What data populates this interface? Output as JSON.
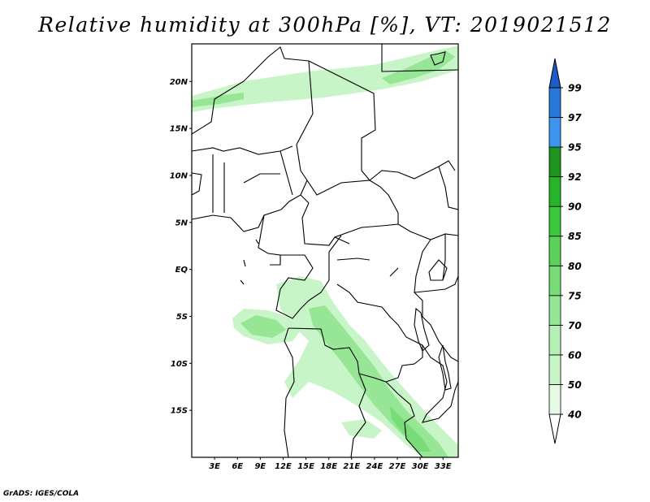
{
  "title": "Relative humidity at 300hPa [%], VT: 2019021512",
  "footer": "GrADS: IGES/COLA",
  "map": {
    "lon_range": [
      0,
      35
    ],
    "lat_range": [
      -20,
      24
    ],
    "lat_ticks": [
      "20N",
      "15N",
      "10N",
      "5N",
      "EQ",
      "5S",
      "10S",
      "15S"
    ],
    "lat_values": [
      20,
      15,
      10,
      5,
      0,
      -5,
      -10,
      -15
    ],
    "lon_ticks": [
      "3E",
      "6E",
      "9E",
      "12E",
      "15E",
      "18E",
      "21E",
      "24E",
      "27E",
      "30E",
      "33E"
    ],
    "lon_values": [
      3,
      6,
      9,
      12,
      15,
      18,
      21,
      24,
      27,
      30,
      33
    ]
  },
  "colorbar": {
    "labels": [
      "40",
      "50",
      "60",
      "70",
      "75",
      "80",
      "85",
      "90",
      "92",
      "95",
      "97",
      "99"
    ],
    "colors": [
      "#ffffff",
      "#e6fae6",
      "#c8f5c8",
      "#b4f0b4",
      "#96e696",
      "#78dc78",
      "#5ad25a",
      "#3cc83c",
      "#28b428",
      "#1e961e",
      "#3c96f0",
      "#2878dc",
      "#1e5ac8"
    ]
  }
}
